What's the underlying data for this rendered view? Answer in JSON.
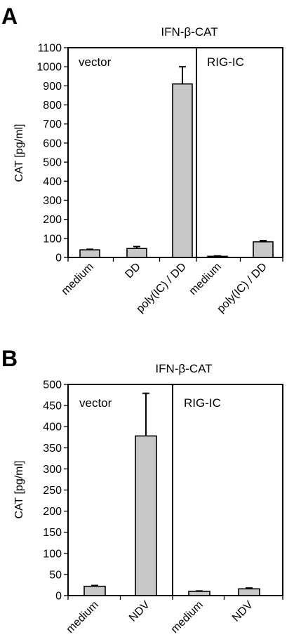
{
  "chart_data": [
    {
      "type": "bar",
      "panel": "A",
      "title": "IFN-β-CAT",
      "ylabel": "CAT [pg/ml]",
      "ylim": [
        0,
        1100
      ],
      "yticks": [
        "0",
        "100",
        "200",
        "300",
        "400",
        "500",
        "600",
        "700",
        "800",
        "900",
        "1000",
        "1100"
      ],
      "groups": [
        {
          "label": "vector",
          "categories": [
            "medium",
            "DD",
            "poly(IC) / DD"
          ],
          "values": [
            40,
            47,
            910
          ],
          "errors": [
            3,
            10,
            90
          ]
        },
        {
          "label": "RIG-IC",
          "categories": [
            "medium",
            "poly(IC) / DD"
          ],
          "values": [
            6,
            82
          ],
          "errors": [
            2,
            6
          ]
        }
      ],
      "bar_color": "#c8c8c8"
    },
    {
      "type": "bar",
      "panel": "B",
      "title": "IFN-β-CAT",
      "ylabel": "CAT [pg/ml]",
      "ylim": [
        0,
        500
      ],
      "yticks": [
        "0",
        "50",
        "100",
        "150",
        "200",
        "250",
        "300",
        "350",
        "400",
        "450",
        "500"
      ],
      "groups": [
        {
          "label": "vector",
          "categories": [
            "medium",
            "NDV"
          ],
          "values": [
            22,
            378
          ],
          "errors": [
            2,
            101
          ]
        },
        {
          "label": "RIG-IC",
          "categories": [
            "medium",
            "NDV"
          ],
          "values": [
            10,
            16
          ],
          "errors": [
            1,
            2
          ]
        }
      ],
      "bar_color": "#c8c8c8"
    }
  ]
}
